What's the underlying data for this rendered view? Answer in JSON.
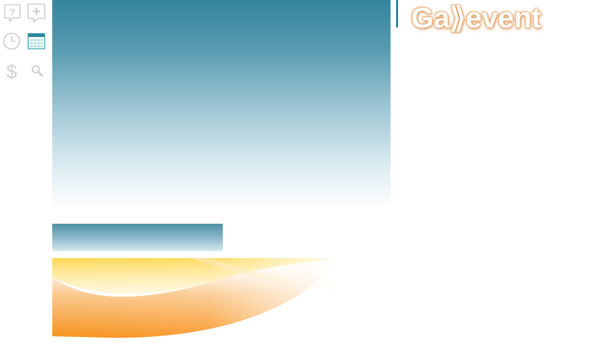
{
  "logo": {
    "text": "Ga⟫event"
  },
  "toolbar": {
    "icons": [
      {
        "name": "help-bubble-icon"
      },
      {
        "name": "add-comment-icon"
      },
      {
        "name": "clock-icon"
      },
      {
        "name": "calendar-icon",
        "active": true
      },
      {
        "name": "dollar-icon"
      },
      {
        "name": "search-icon"
      }
    ]
  },
  "colors": {
    "accent": "#2b8a9a",
    "hero_top": "#32859d",
    "logo_glow": "#e9a15e",
    "wave_orange": "#f7931e",
    "wave_yellow": "#ffd34d"
  }
}
